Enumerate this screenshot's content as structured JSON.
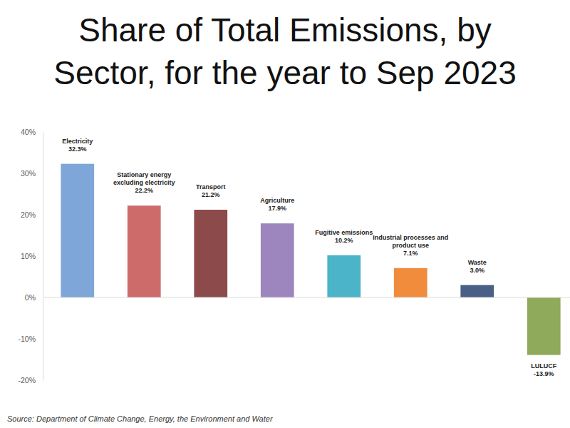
{
  "chart_data": {
    "type": "bar",
    "title": "Share of Total Emissions, by Sector, for the year to Sep 2023",
    "source": "Source: Department of Climate Change, Energy, the Environment and Water",
    "categories": [
      "Electricity",
      "Stationary energy excluding electricity",
      "Transport",
      "Agriculture",
      "Fugitive emissions",
      "Industrial processes and product use",
      "Waste",
      "LULUCF"
    ],
    "values": [
      32.3,
      22.2,
      21.2,
      17.9,
      10.2,
      7.1,
      3.0,
      -13.9
    ],
    "value_labels": [
      "32.3%",
      "22.2%",
      "21.2%",
      "17.9%",
      "10.2%",
      "7.1%",
      "3.0%",
      "-13.9%"
    ],
    "colors": [
      "#7ea6d8",
      "#cd6b6b",
      "#8c4a4a",
      "#9d86bd",
      "#4bb4c8",
      "#f08c3c",
      "#4a5f86",
      "#8faa5a"
    ],
    "ylim": [
      -20,
      40
    ],
    "yticks": [
      {
        "value": -20,
        "label": "-20%"
      },
      {
        "value": -10,
        "label": "-10%"
      },
      {
        "value": 0,
        "label": "0%"
      },
      {
        "value": 10,
        "label": "10%"
      },
      {
        "value": 20,
        "label": "20%"
      },
      {
        "value": 30,
        "label": "30%"
      },
      {
        "value": 40,
        "label": "40%"
      }
    ],
    "grid": false,
    "data_labels": true,
    "tick_labels": "y"
  }
}
